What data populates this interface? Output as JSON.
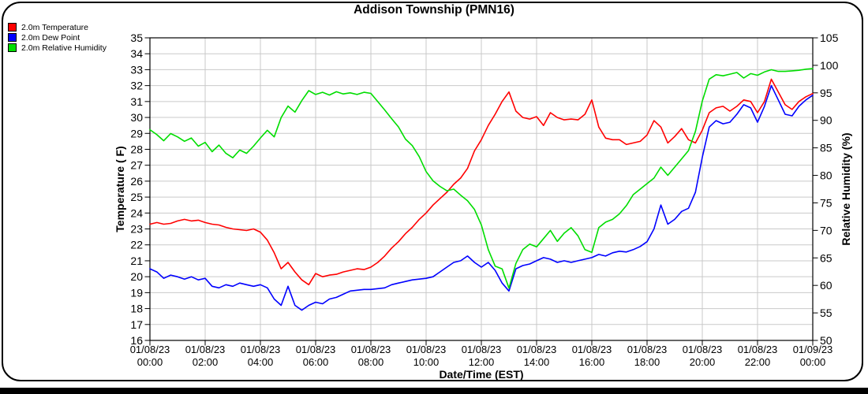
{
  "title": "Addison Township (PMN16)",
  "legend": {
    "items": [
      {
        "label": "2.0m Temperature",
        "color": "#ff0000"
      },
      {
        "label": "2.0m Dew Point",
        "color": "#0000ff"
      },
      {
        "label": "2.0m Relative Humidity",
        "color": "#00dd00"
      }
    ]
  },
  "chart_data": {
    "type": "line",
    "title": "Addison Township (PMN16)",
    "grid": true,
    "grid_color": "#c9c9c9",
    "axis_color": "#000000",
    "legend_position": "top-left",
    "x": {
      "label": "Date/Time (EST)",
      "start_hour": 0,
      "end_hour": 24,
      "step_hours": 0.25,
      "tick_every_hours": 2,
      "tick_labels": [
        {
          "date": "01/08/23",
          "time": "00:00"
        },
        {
          "date": "01/08/23",
          "time": "02:00"
        },
        {
          "date": "01/08/23",
          "time": "04:00"
        },
        {
          "date": "01/08/23",
          "time": "06:00"
        },
        {
          "date": "01/08/23",
          "time": "08:00"
        },
        {
          "date": "01/08/23",
          "time": "10:00"
        },
        {
          "date": "01/08/23",
          "time": "12:00"
        },
        {
          "date": "01/08/23",
          "time": "14:00"
        },
        {
          "date": "01/08/23",
          "time": "16:00"
        },
        {
          "date": "01/08/23",
          "time": "18:00"
        },
        {
          "date": "01/08/23",
          "time": "20:00"
        },
        {
          "date": "01/08/23",
          "time": "22:00"
        },
        {
          "date": "01/09/23",
          "time": "00:00"
        }
      ]
    },
    "axes": {
      "left": {
        "label": "Temperature ( F)",
        "min": 16,
        "max": 35,
        "tick_step": 1,
        "tick_labels": [
          16,
          17,
          18,
          19,
          20,
          21,
          22,
          23,
          24,
          25,
          26,
          27,
          28,
          29,
          30,
          31,
          32,
          33,
          34,
          35
        ]
      },
      "right": {
        "label": "Relative Humidity (%)",
        "min": 50,
        "max": 105,
        "tick_step": 5,
        "tick_labels": [
          50,
          55,
          60,
          65,
          70,
          75,
          80,
          85,
          90,
          95,
          100,
          105
        ]
      }
    },
    "series": [
      {
        "id": "temperature",
        "name": "2.0m Temperature",
        "color": "#ff0000",
        "axis": "left",
        "values": [
          23.3,
          23.4,
          23.3,
          23.35,
          23.5,
          23.6,
          23.5,
          23.55,
          23.4,
          23.3,
          23.25,
          23.1,
          23.0,
          22.95,
          22.9,
          23.0,
          22.8,
          22.3,
          21.5,
          20.5,
          20.9,
          20.3,
          19.8,
          19.5,
          20.2,
          20.0,
          20.1,
          20.15,
          20.3,
          20.4,
          20.5,
          20.45,
          20.6,
          20.9,
          21.3,
          21.8,
          22.2,
          22.7,
          23.1,
          23.6,
          24.0,
          24.5,
          24.9,
          25.3,
          25.8,
          26.2,
          26.8,
          27.9,
          28.6,
          29.5,
          30.2,
          31.0,
          31.6,
          30.4,
          30.0,
          29.9,
          30.05,
          29.5,
          30.3,
          30.0,
          29.85,
          29.9,
          29.85,
          30.2,
          31.1,
          29.4,
          28.7,
          28.6,
          28.6,
          28.3,
          28.4,
          28.5,
          28.9,
          29.8,
          29.4,
          28.4,
          28.8,
          29.3,
          28.6,
          28.4,
          29.2,
          30.3,
          30.6,
          30.7,
          30.4,
          30.7,
          31.1,
          31.0,
          30.3,
          31.0,
          32.4,
          31.6,
          30.8,
          30.5,
          31.0,
          31.3,
          31.5
        ]
      },
      {
        "id": "dew-point",
        "name": "2.0m Dew Point",
        "color": "#0000ff",
        "axis": "left",
        "values": [
          20.5,
          20.3,
          19.9,
          20.1,
          20.0,
          19.85,
          20.0,
          19.8,
          19.9,
          19.4,
          19.3,
          19.5,
          19.4,
          19.6,
          19.5,
          19.4,
          19.5,
          19.3,
          18.6,
          18.2,
          19.4,
          18.2,
          17.9,
          18.2,
          18.4,
          18.3,
          18.6,
          18.7,
          18.9,
          19.1,
          19.15,
          19.2,
          19.2,
          19.25,
          19.3,
          19.5,
          19.6,
          19.7,
          19.8,
          19.85,
          19.9,
          20.0,
          20.3,
          20.6,
          20.9,
          21.0,
          21.3,
          20.9,
          20.6,
          20.9,
          20.4,
          19.6,
          19.1,
          20.5,
          20.7,
          20.8,
          21.0,
          21.2,
          21.1,
          20.9,
          21.0,
          20.9,
          21.0,
          21.1,
          21.2,
          21.4,
          21.3,
          21.5,
          21.6,
          21.55,
          21.7,
          21.9,
          22.2,
          23.0,
          24.5,
          23.3,
          23.6,
          24.1,
          24.3,
          25.3,
          27.5,
          29.4,
          29.8,
          29.6,
          29.7,
          30.2,
          30.8,
          30.6,
          29.7,
          30.7,
          32.0,
          31.1,
          30.2,
          30.1,
          30.7,
          31.1,
          31.4
        ]
      },
      {
        "id": "relative-humidity",
        "name": "2.0m Relative Humidity",
        "color": "#00dd00",
        "axis": "right",
        "values": [
          88.3,
          87.4,
          86.3,
          87.6,
          87.0,
          86.2,
          86.8,
          85.3,
          86.0,
          84.3,
          85.5,
          84.0,
          83.2,
          84.6,
          84.0,
          85.3,
          86.8,
          88.2,
          87.0,
          90.5,
          92.6,
          91.5,
          93.6,
          95.4,
          94.7,
          95.1,
          94.6,
          95.2,
          94.8,
          95.0,
          94.7,
          95.1,
          94.9,
          93.4,
          91.9,
          90.3,
          88.8,
          86.6,
          85.4,
          83.4,
          80.7,
          79.0,
          78.0,
          77.2,
          77.5,
          76.4,
          75.4,
          73.8,
          71.0,
          66.5,
          63.5,
          63.0,
          59.5,
          64.0,
          66.5,
          67.5,
          67.0,
          68.5,
          70.0,
          68.0,
          69.5,
          70.5,
          69.0,
          66.5,
          66.0,
          70.5,
          71.5,
          72.0,
          73.0,
          74.5,
          76.5,
          77.5,
          78.5,
          79.5,
          81.5,
          80.0,
          81.5,
          83.0,
          84.5,
          88.0,
          93.5,
          97.5,
          98.3,
          98.1,
          98.4,
          98.7,
          97.7,
          98.5,
          98.2,
          98.8,
          99.2,
          98.9,
          98.9,
          99.0,
          99.1,
          99.3,
          99.4
        ]
      }
    ]
  }
}
